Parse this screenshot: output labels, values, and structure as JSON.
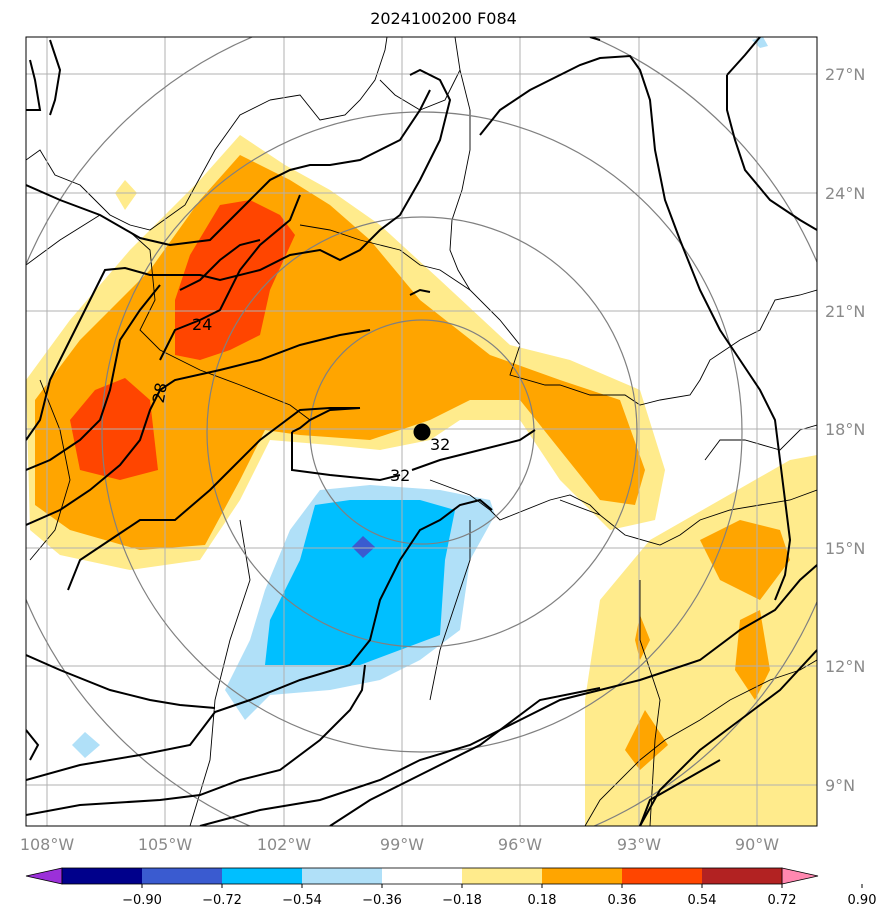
{
  "title": "2024100200 F084",
  "map": {
    "lon_labels": [
      "108°W",
      "105°W",
      "102°W",
      "99°W",
      "96°W",
      "93°W",
      "90°W"
    ],
    "lat_labels": [
      "27°N",
      "24°N",
      "21°N",
      "18°N",
      "15°N",
      "12°N",
      "9°N"
    ],
    "contour_labels": [
      "24",
      "28",
      "32",
      "32"
    ],
    "center_marker": "storm-center"
  },
  "colorbar": {
    "ticks": [
      "−0.90",
      "−0.72",
      "−0.54",
      "−0.36",
      "−0.18",
      "0.18",
      "0.36",
      "0.54",
      "0.72",
      "0.90"
    ],
    "colors": [
      "#9b30d9",
      "#00008b",
      "#3a5bd0",
      "#00bfff",
      "#b0e0f8",
      "#ffffff",
      "#ffeb8c",
      "#ffa500",
      "#ff4500",
      "#b22222",
      "#ff88b0"
    ]
  }
}
